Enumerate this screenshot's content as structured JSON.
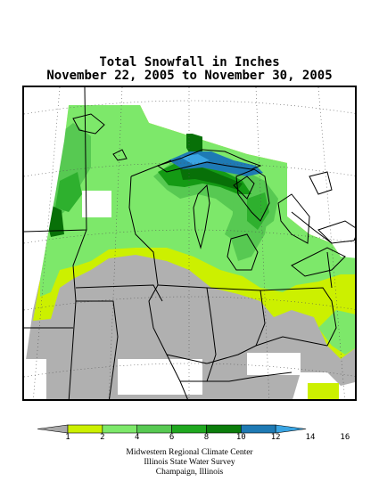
{
  "title": {
    "line1": "Total Snowfall in Inches",
    "line2": "November 22, 2005 to November 30, 2005"
  },
  "legend": {
    "ticks": [
      "1",
      "2",
      "4",
      "6",
      "8",
      "10",
      "12",
      "14",
      "16"
    ],
    "colors": [
      "#a9a9a9",
      "#ccf000",
      "#7de86a",
      "#57c952",
      "#1fa81f",
      "#0b7d0b",
      "#1e7ab4",
      "#3aa5e3"
    ]
  },
  "credits": [
    "Midwestern Regional Climate Center",
    "Illinois State Water Survey",
    "Champaign, Illinois"
  ],
  "colors": {
    "no_snow": "#ffffff",
    "trace": "#b0b0b0",
    "c1_2": "#ccf000",
    "c2_4": "#7de86a",
    "c4_6": "#57c952",
    "c6_8": "#2eb02e",
    "c8_10": "#149a14",
    "c10_12": "#087008",
    "c12_14": "#1e7ab4",
    "c14_16": "#3aa5e3"
  }
}
